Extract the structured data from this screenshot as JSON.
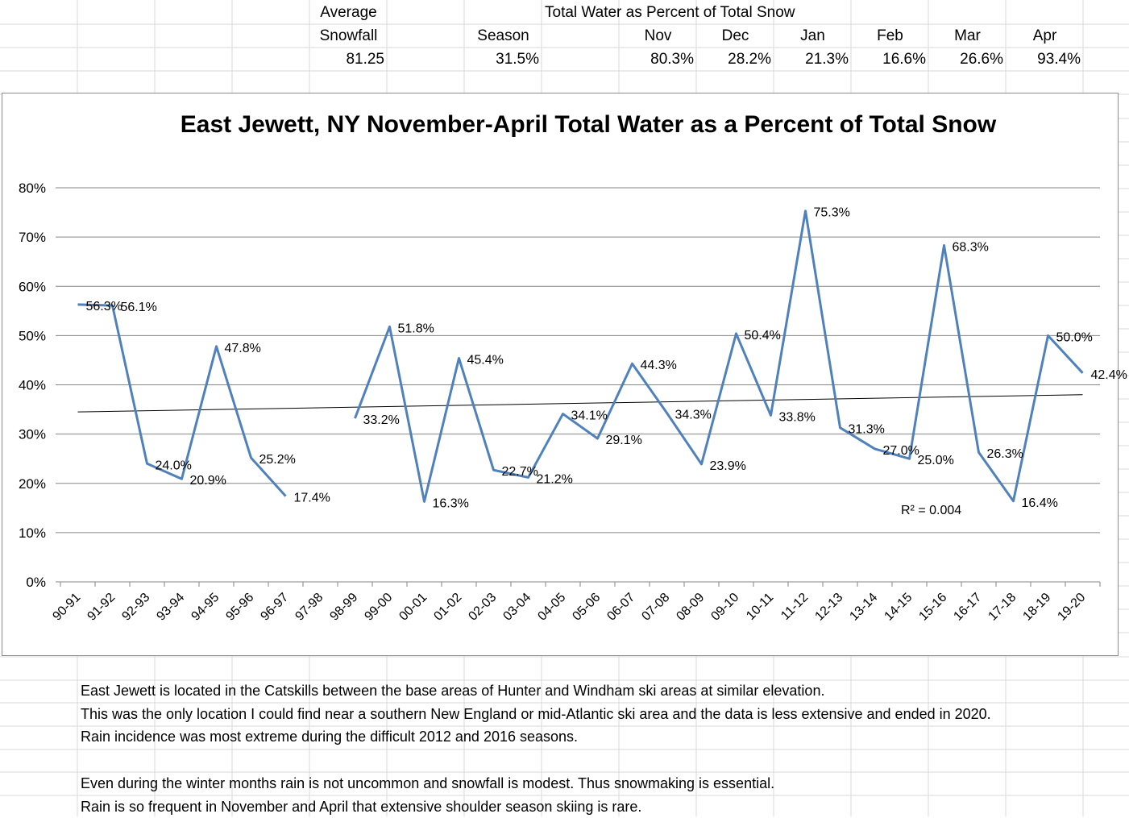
{
  "summary": {
    "avg_label_1": "Average",
    "avg_label_2": "Snowfall",
    "avg_value": "81.25",
    "water_title": "Total Water as Percent of Total Snow",
    "season_label": "Season",
    "season_value": "31.5%",
    "months": [
      {
        "label": "Nov",
        "value": "80.3%"
      },
      {
        "label": "Dec",
        "value": "28.2%"
      },
      {
        "label": "Jan",
        "value": "21.3%"
      },
      {
        "label": "Feb",
        "value": "16.6%"
      },
      {
        "label": "Mar",
        "value": "26.6%"
      },
      {
        "label": "Apr",
        "value": "93.4%"
      }
    ]
  },
  "chart_data": {
    "type": "line",
    "title": "East Jewett, NY November-April Total Water as a Percent of Total Snow",
    "xlabel": "",
    "ylabel": "",
    "ylim": [
      0,
      80
    ],
    "yticks": [
      0,
      10,
      20,
      30,
      40,
      50,
      60,
      70,
      80
    ],
    "ytick_labels": [
      "0%",
      "10%",
      "20%",
      "30%",
      "40%",
      "50%",
      "60%",
      "70%",
      "80%"
    ],
    "grid": true,
    "legend": "none",
    "categories": [
      "90-91",
      "91-92",
      "92-93",
      "93-94",
      "94-95",
      "95-96",
      "96-97",
      "97-98",
      "98-99",
      "99-00",
      "00-01",
      "01-02",
      "02-03",
      "03-04",
      "04-05",
      "05-06",
      "06-07",
      "07-08",
      "08-09",
      "09-10",
      "10-11",
      "11-12",
      "12-13",
      "13-14",
      "14-15",
      "15-16",
      "16-17",
      "17-18",
      "18-19",
      "19-20"
    ],
    "series": [
      {
        "name": "Total Water as Percent of Total Snow",
        "color": "#4f81bd",
        "values": [
          56.3,
          56.1,
          24.0,
          20.9,
          47.8,
          25.2,
          17.4,
          null,
          33.2,
          51.8,
          16.3,
          45.4,
          22.7,
          21.2,
          34.1,
          29.1,
          44.3,
          34.3,
          23.9,
          50.4,
          33.8,
          75.3,
          31.3,
          27.0,
          25.0,
          68.3,
          26.3,
          16.4,
          50.0,
          42.4
        ],
        "labels": [
          "56.3%",
          "56.1%",
          "24.0%",
          "20.9%",
          "47.8%",
          "25.2%",
          "17.4%",
          null,
          "33.2%",
          "51.8%",
          "16.3%",
          "45.4%",
          "22.7%",
          "21.2%",
          "34.1%",
          "29.1%",
          "44.3%",
          "34.3%",
          "23.9%",
          "50.4%",
          "33.8%",
          "75.3%",
          "31.3%",
          "27.0%",
          "25.0%",
          "68.3%",
          "26.3%",
          "16.4%",
          "50.0%",
          "42.4%"
        ]
      }
    ],
    "trendline": {
      "type": "linear",
      "start": 34.5,
      "end": 38.0,
      "color": "#000000",
      "r2_label": "R² = 0.004"
    }
  },
  "notes": [
    "East Jewett is located in the Catskills between the base areas of Hunter and Windham ski areas at similar elevation.",
    "This was the only location I could find near a southern New England or mid-Atlantic ski area and the data is less extensive and ended in 2020.",
    "Rain incidence was most extreme during the difficult 2012 and 2016 seasons.",
    "Even during the winter months rain is not uncommon and snowfall is modest.  Thus snowmaking is essential.",
    "Rain is so frequent in November and April that extensive shoulder season skiing is rare."
  ]
}
